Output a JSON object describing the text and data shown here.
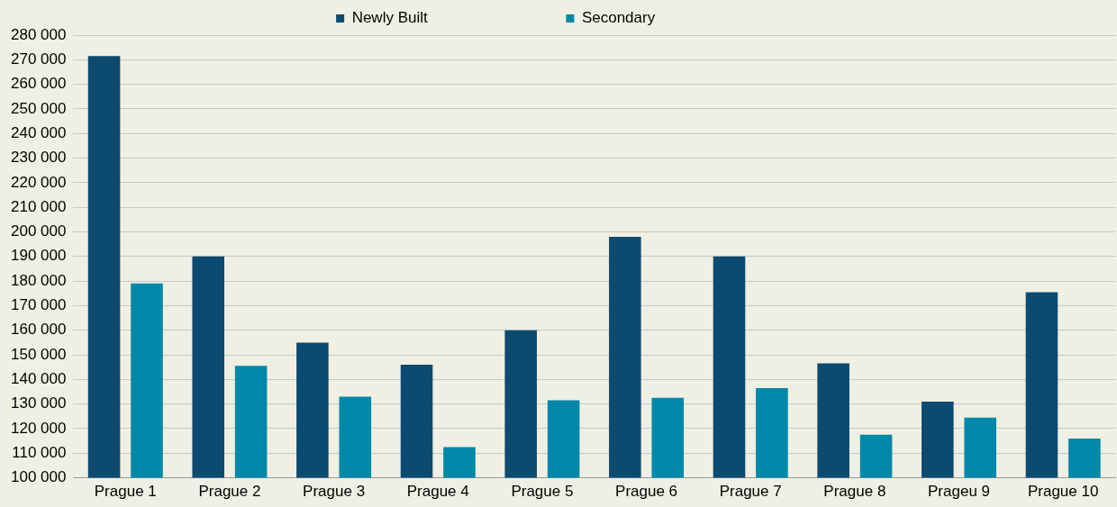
{
  "chart_data": {
    "type": "bar",
    "categories": [
      "Prague 1",
      "Prague 2",
      "Prague 3",
      "Prague 4",
      "Prague 5",
      "Prague 6",
      "Prague 7",
      "Prague 8",
      "Prageu 9",
      "Prague 10"
    ],
    "series": [
      {
        "name": "Newly Built",
        "color": "#0d4a70",
        "values": [
          271500,
          190000,
          155000,
          146000,
          160000,
          198000,
          190000,
          146500,
          131000,
          175500
        ]
      },
      {
        "name": "Secondary",
        "color": "#0088a8",
        "values": [
          179000,
          145500,
          133000,
          112500,
          131500,
          132500,
          136500,
          117500,
          124500,
          116000
        ]
      }
    ],
    "ylim": [
      100000,
      280000
    ],
    "yticks": [
      {
        "value": 100000,
        "label": "100 000"
      },
      {
        "value": 110000,
        "label": "110 000"
      },
      {
        "value": 120000,
        "label": "120 000"
      },
      {
        "value": 130000,
        "label": "130 000"
      },
      {
        "value": 140000,
        "label": "140 000"
      },
      {
        "value": 150000,
        "label": "150 000"
      },
      {
        "value": 160000,
        "label": "160 000"
      },
      {
        "value": 170000,
        "label": "170 000"
      },
      {
        "value": 180000,
        "label": "180 000"
      },
      {
        "value": 190000,
        "label": "190 000"
      },
      {
        "value": 200000,
        "label": "200 000"
      },
      {
        "value": 210000,
        "label": "210 000"
      },
      {
        "value": 220000,
        "label": "220 000"
      },
      {
        "value": 230000,
        "label": "230 000"
      },
      {
        "value": 240000,
        "label": "240 000"
      },
      {
        "value": 250000,
        "label": "250 000"
      },
      {
        "value": 260000,
        "label": "260 000"
      },
      {
        "value": 270000,
        "label": "270 000"
      },
      {
        "value": 280000,
        "label": "280 000"
      }
    ],
    "grid": "y",
    "legend": "top"
  }
}
